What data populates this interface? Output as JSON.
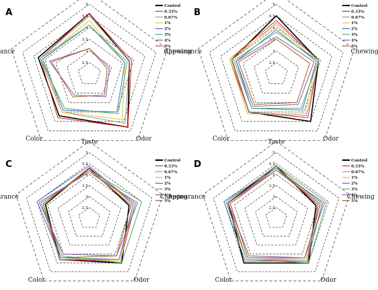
{
  "chart_data": [
    {
      "type": "radar",
      "panel_label": "A",
      "axes": [
        "Taste",
        "Chewing",
        "Odor",
        "Color",
        "Appearance"
      ],
      "rlim": [
        2,
        5
      ],
      "ticks": [
        "2.5",
        "3",
        "3.5",
        "4",
        "4.5",
        "5"
      ],
      "series": [
        {
          "name": "Control",
          "color": "#000000",
          "values": [
            4.6,
            3.8,
            4.8,
            4.2,
            4.3
          ]
        },
        {
          "name": "0.33%",
          "color": "#e8262b",
          "values": [
            4.6,
            3.9,
            4.8,
            4.3,
            4.2
          ]
        },
        {
          "name": "0.67%",
          "color": "#9a9a9a",
          "values": [
            4.5,
            3.8,
            4.6,
            4.0,
            4.2
          ]
        },
        {
          "name": "1%",
          "color": "#f0c02a",
          "values": [
            4.3,
            3.6,
            4.4,
            4.0,
            4.1
          ]
        },
        {
          "name": "2%",
          "color": "#4472c4",
          "values": [
            4.1,
            3.6,
            4.0,
            3.9,
            4.1
          ]
        },
        {
          "name": "3%",
          "color": "#4fb36b",
          "values": [
            4.1,
            3.7,
            4.1,
            3.8,
            4.2
          ]
        },
        {
          "name": "4%",
          "color": "#8b5aa0",
          "values": [
            3.1,
            2.9,
            3.2,
            3.1,
            3.8
          ]
        },
        {
          "name": "5%",
          "color": "#a0632b",
          "values": [
            3.1,
            2.8,
            3.1,
            3.2,
            3.7
          ]
        }
      ]
    },
    {
      "type": "radar",
      "panel_label": "B",
      "axes": [
        "Taste",
        "Chewing",
        "Odor",
        "Color",
        "Appearance"
      ],
      "rlim": [
        2,
        5
      ],
      "ticks": [
        "2.5",
        "3",
        "3.5",
        "4",
        "4.5",
        "5"
      ],
      "series": [
        {
          "name": "Control",
          "color": "#000000",
          "values": [
            4.5,
            3.9,
            4.5,
            4.0,
            4.0
          ]
        },
        {
          "name": "0.33%",
          "color": "#e8262b",
          "values": [
            4.3,
            3.9,
            4.3,
            4.0,
            4.1
          ]
        },
        {
          "name": "0.67%",
          "color": "#9a9a9a",
          "values": [
            4.2,
            3.9,
            4.2,
            4.0,
            4.0
          ]
        },
        {
          "name": "1%",
          "color": "#f0c02a",
          "values": [
            4.1,
            3.8,
            4.1,
            4.1,
            4.1
          ]
        },
        {
          "name": "2%",
          "color": "#4472c4",
          "values": [
            3.9,
            3.8,
            3.9,
            3.8,
            3.8
          ]
        },
        {
          "name": "3%",
          "color": "#4fb36b",
          "values": [
            3.8,
            3.9,
            3.8,
            3.8,
            3.9
          ]
        },
        {
          "name": "4%",
          "color": "#8b5aa0",
          "values": [
            3.6,
            3.7,
            3.6,
            3.7,
            3.8
          ]
        },
        {
          "name": "5%",
          "color": "#a0632b",
          "values": [
            3.5,
            3.5,
            3.5,
            3.6,
            3.7
          ]
        }
      ]
    },
    {
      "type": "radar",
      "panel_label": "C",
      "axes": [
        "Taste",
        "Chewing",
        "Odor",
        "Color",
        "Appearance"
      ],
      "rlim": [
        2,
        5
      ],
      "ticks": [
        "2.5",
        "3",
        "3.5",
        "4",
        "4.5",
        "5"
      ],
      "series": [
        {
          "name": "Control",
          "color": "#000000",
          "values": [
            4.3,
            3.9,
            4.5,
            4.3,
            4.1
          ]
        },
        {
          "name": "0.33%",
          "color": "#e8262b",
          "values": [
            4.3,
            4.2,
            4.4,
            4.3,
            4.2
          ]
        },
        {
          "name": "0.67%",
          "color": "#9a9a9a",
          "values": [
            4.2,
            4.2,
            4.3,
            4.3,
            4.3
          ]
        },
        {
          "name": "1%",
          "color": "#f0c02a",
          "values": [
            4.2,
            4.1,
            4.4,
            4.2,
            4.2
          ]
        },
        {
          "name": "2%",
          "color": "#4472c4",
          "values": [
            4.4,
            4.1,
            4.3,
            4.2,
            4.5
          ]
        },
        {
          "name": "3%",
          "color": "#4fb36b",
          "values": [
            4.2,
            4.5,
            4.5,
            4.1,
            4.3
          ]
        },
        {
          "name": "4%",
          "color": "#8b5aa0",
          "values": [
            4.1,
            4.3,
            4.1,
            4.0,
            4.4
          ]
        },
        {
          "name": "5%",
          "color": "#a0632b",
          "values": [
            4.2,
            4.0,
            4.1,
            4.2,
            4.2
          ]
        }
      ]
    },
    {
      "type": "radar",
      "panel_label": "D",
      "axes": [
        "Taste",
        "Chewing",
        "Odor",
        "Color",
        "Appearance"
      ],
      "rlim": [
        2,
        5
      ],
      "ticks": [
        "2.5",
        "3",
        "3.5",
        "4",
        "4.5",
        "5"
      ],
      "series": [
        {
          "name": "Control",
          "color": "#000000",
          "values": [
            4.4,
            3.9,
            4.5,
            4.5,
            4.3
          ]
        },
        {
          "name": "0.33%",
          "color": "#e8262b",
          "values": [
            4.3,
            4.0,
            4.4,
            4.3,
            4.3
          ]
        },
        {
          "name": "0.67%",
          "color": "#9a9a9a",
          "values": [
            4.3,
            4.1,
            4.3,
            4.2,
            4.2
          ]
        },
        {
          "name": "1%",
          "color": "#f0c02a",
          "values": [
            4.4,
            4.2,
            4.3,
            4.3,
            4.4
          ]
        },
        {
          "name": "2%",
          "color": "#4472c4",
          "values": [
            4.3,
            4.2,
            4.4,
            4.4,
            4.5
          ]
        },
        {
          "name": "3%",
          "color": "#4fb36b",
          "values": [
            4.4,
            4.4,
            4.5,
            4.3,
            4.4
          ]
        },
        {
          "name": "4%",
          "color": "#8b5aa0",
          "values": [
            4.2,
            4.3,
            4.2,
            4.1,
            4.3
          ]
        },
        {
          "name": "5%",
          "color": "#a0632b",
          "values": [
            4.2,
            4.1,
            4.2,
            4.2,
            4.2
          ]
        }
      ]
    }
  ]
}
